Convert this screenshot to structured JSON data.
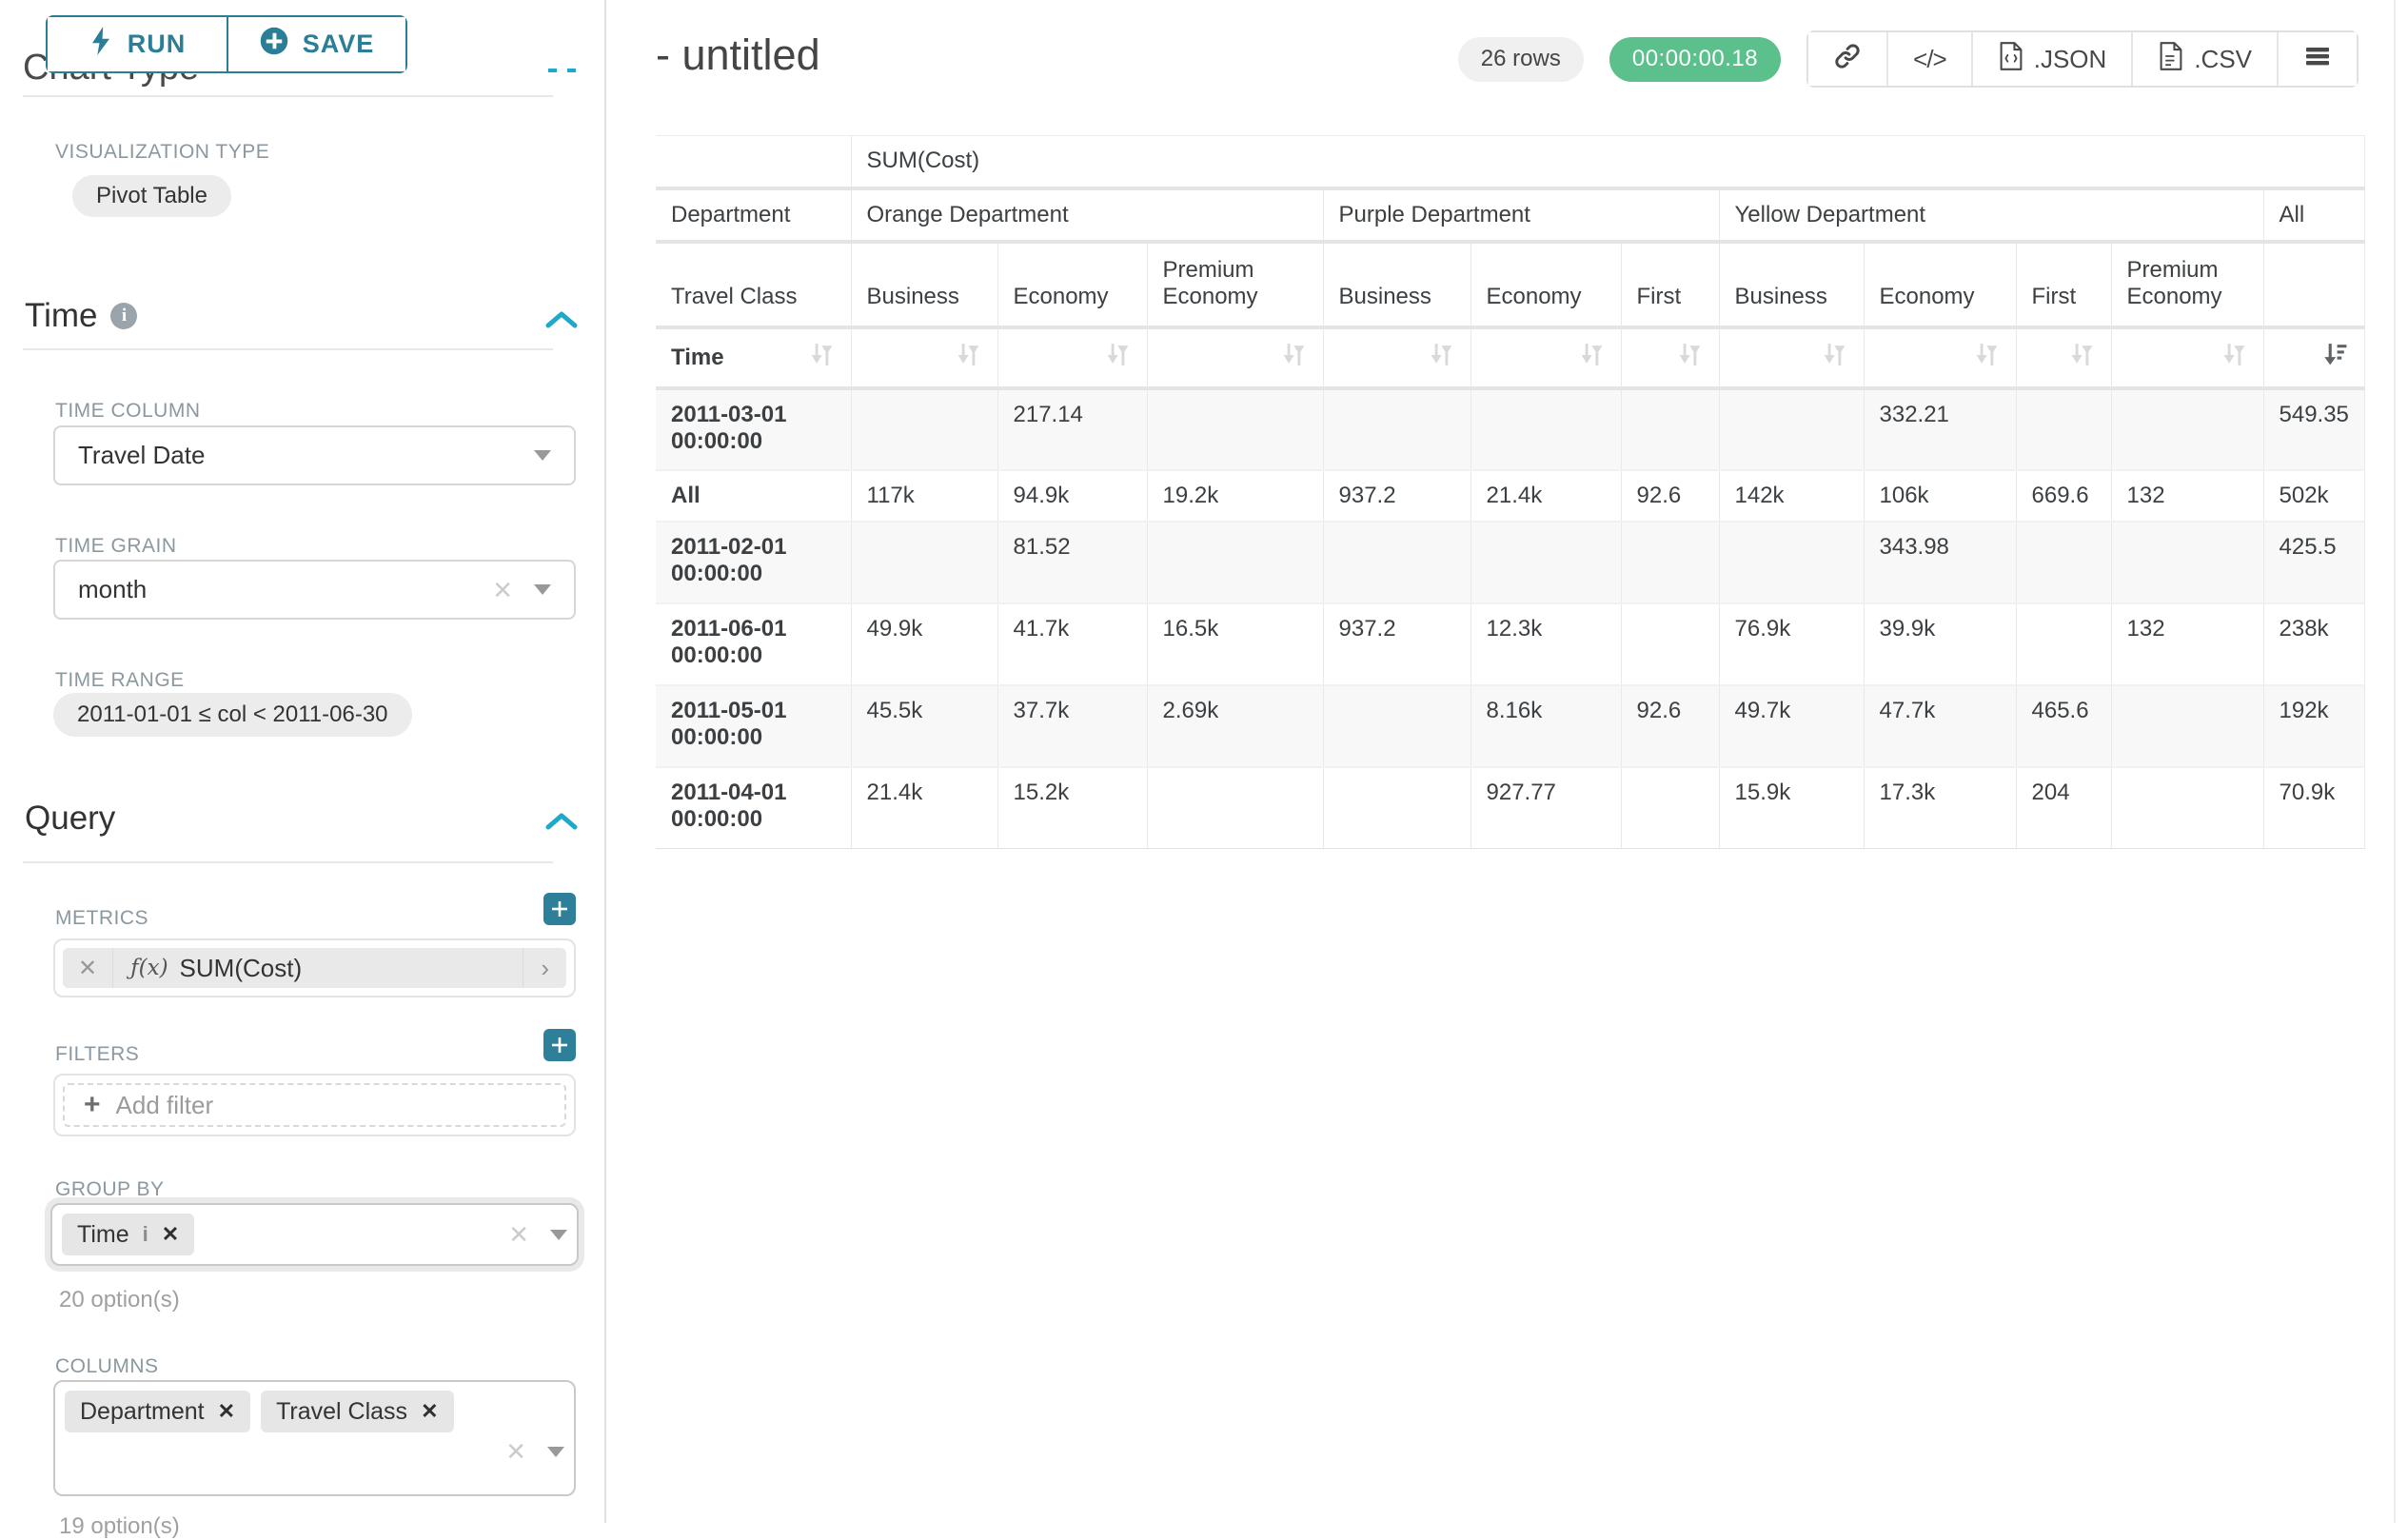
{
  "accent": "#2a7e96",
  "blue": "#1fa8c9",
  "green": "#5bc08c",
  "panel": {
    "run_label": "RUN",
    "save_label": "SAVE",
    "chart_type_heading": "Chart Type",
    "viz_type_label": "VISUALIZATION TYPE",
    "viz_type_value": "Pivot Table",
    "time_section_label": "Time",
    "time_column_label": "TIME COLUMN",
    "time_column_value": "Travel Date",
    "time_grain_label": "TIME GRAIN",
    "time_grain_value": "month",
    "time_range_label": "TIME RANGE",
    "time_range_value": "2011-01-01 ≤ col < 2011-06-30",
    "query_section_label": "Query",
    "metrics_label": "METRICS",
    "metric_fx": "ƒ(x)",
    "metric_value": "SUM(Cost)",
    "metric_arrow": "›",
    "filters_label": "FILTERS",
    "add_filter_label": "Add filter",
    "add_filter_plus": "+",
    "group_by_label": "GROUP BY",
    "group_by_chips": [
      {
        "label": "Time",
        "info": "i",
        "remove": "✕"
      }
    ],
    "group_by_helper": "20 option(s)",
    "columns_label": "COLUMNS",
    "columns_chips": [
      {
        "label": "Department",
        "remove": "✕"
      },
      {
        "label": "Travel Class",
        "remove": "✕"
      }
    ],
    "columns_helper": "19 option(s)",
    "clear_glyph": "✕"
  },
  "header": {
    "title": "- untitled",
    "row_count": "26 rows",
    "timer": "00:00:00.18",
    "code_glyph": "</>",
    "json_label": ".JSON",
    "csv_label": ".CSV"
  },
  "table": {
    "metric_header": "SUM(Cost)",
    "dept_row_label": "Department",
    "class_row_label": "Travel Class",
    "time_row_label": "Time",
    "col_groups": [
      {
        "label": "Orange Department",
        "span": 3
      },
      {
        "label": "Purple Department",
        "span": 3
      },
      {
        "label": "Yellow Department",
        "span": 4
      },
      {
        "label": "All",
        "span": 1
      }
    ],
    "sub_cols": [
      "Business",
      "Economy",
      "Premium Economy",
      "Business",
      "Economy",
      "First",
      "Business",
      "Economy",
      "First",
      "Premium Economy",
      ""
    ],
    "rows": [
      {
        "label": "2011-03-01 00:00:00",
        "values": [
          "",
          "217.14",
          "",
          "",
          "",
          "",
          "",
          "332.21",
          "",
          "",
          "549.35"
        ]
      },
      {
        "label": "All",
        "values": [
          "117k",
          "94.9k",
          "19.2k",
          "937.2",
          "21.4k",
          "92.6",
          "142k",
          "106k",
          "669.6",
          "132",
          "502k"
        ]
      },
      {
        "label": "2011-02-01 00:00:00",
        "values": [
          "",
          "81.52",
          "",
          "",
          "",
          "",
          "",
          "343.98",
          "",
          "",
          "425.5"
        ]
      },
      {
        "label": "2011-06-01 00:00:00",
        "values": [
          "49.9k",
          "41.7k",
          "16.5k",
          "937.2",
          "12.3k",
          "",
          "76.9k",
          "39.9k",
          "",
          "132",
          "238k"
        ]
      },
      {
        "label": "2011-05-01 00:00:00",
        "values": [
          "45.5k",
          "37.7k",
          "2.69k",
          "",
          "8.16k",
          "92.6",
          "49.7k",
          "47.7k",
          "465.6",
          "",
          "192k"
        ]
      },
      {
        "label": "2011-04-01 00:00:00",
        "values": [
          "21.4k",
          "15.2k",
          "",
          "",
          "927.77",
          "",
          "15.9k",
          "17.3k",
          "204",
          "",
          "70.9k"
        ]
      }
    ]
  }
}
